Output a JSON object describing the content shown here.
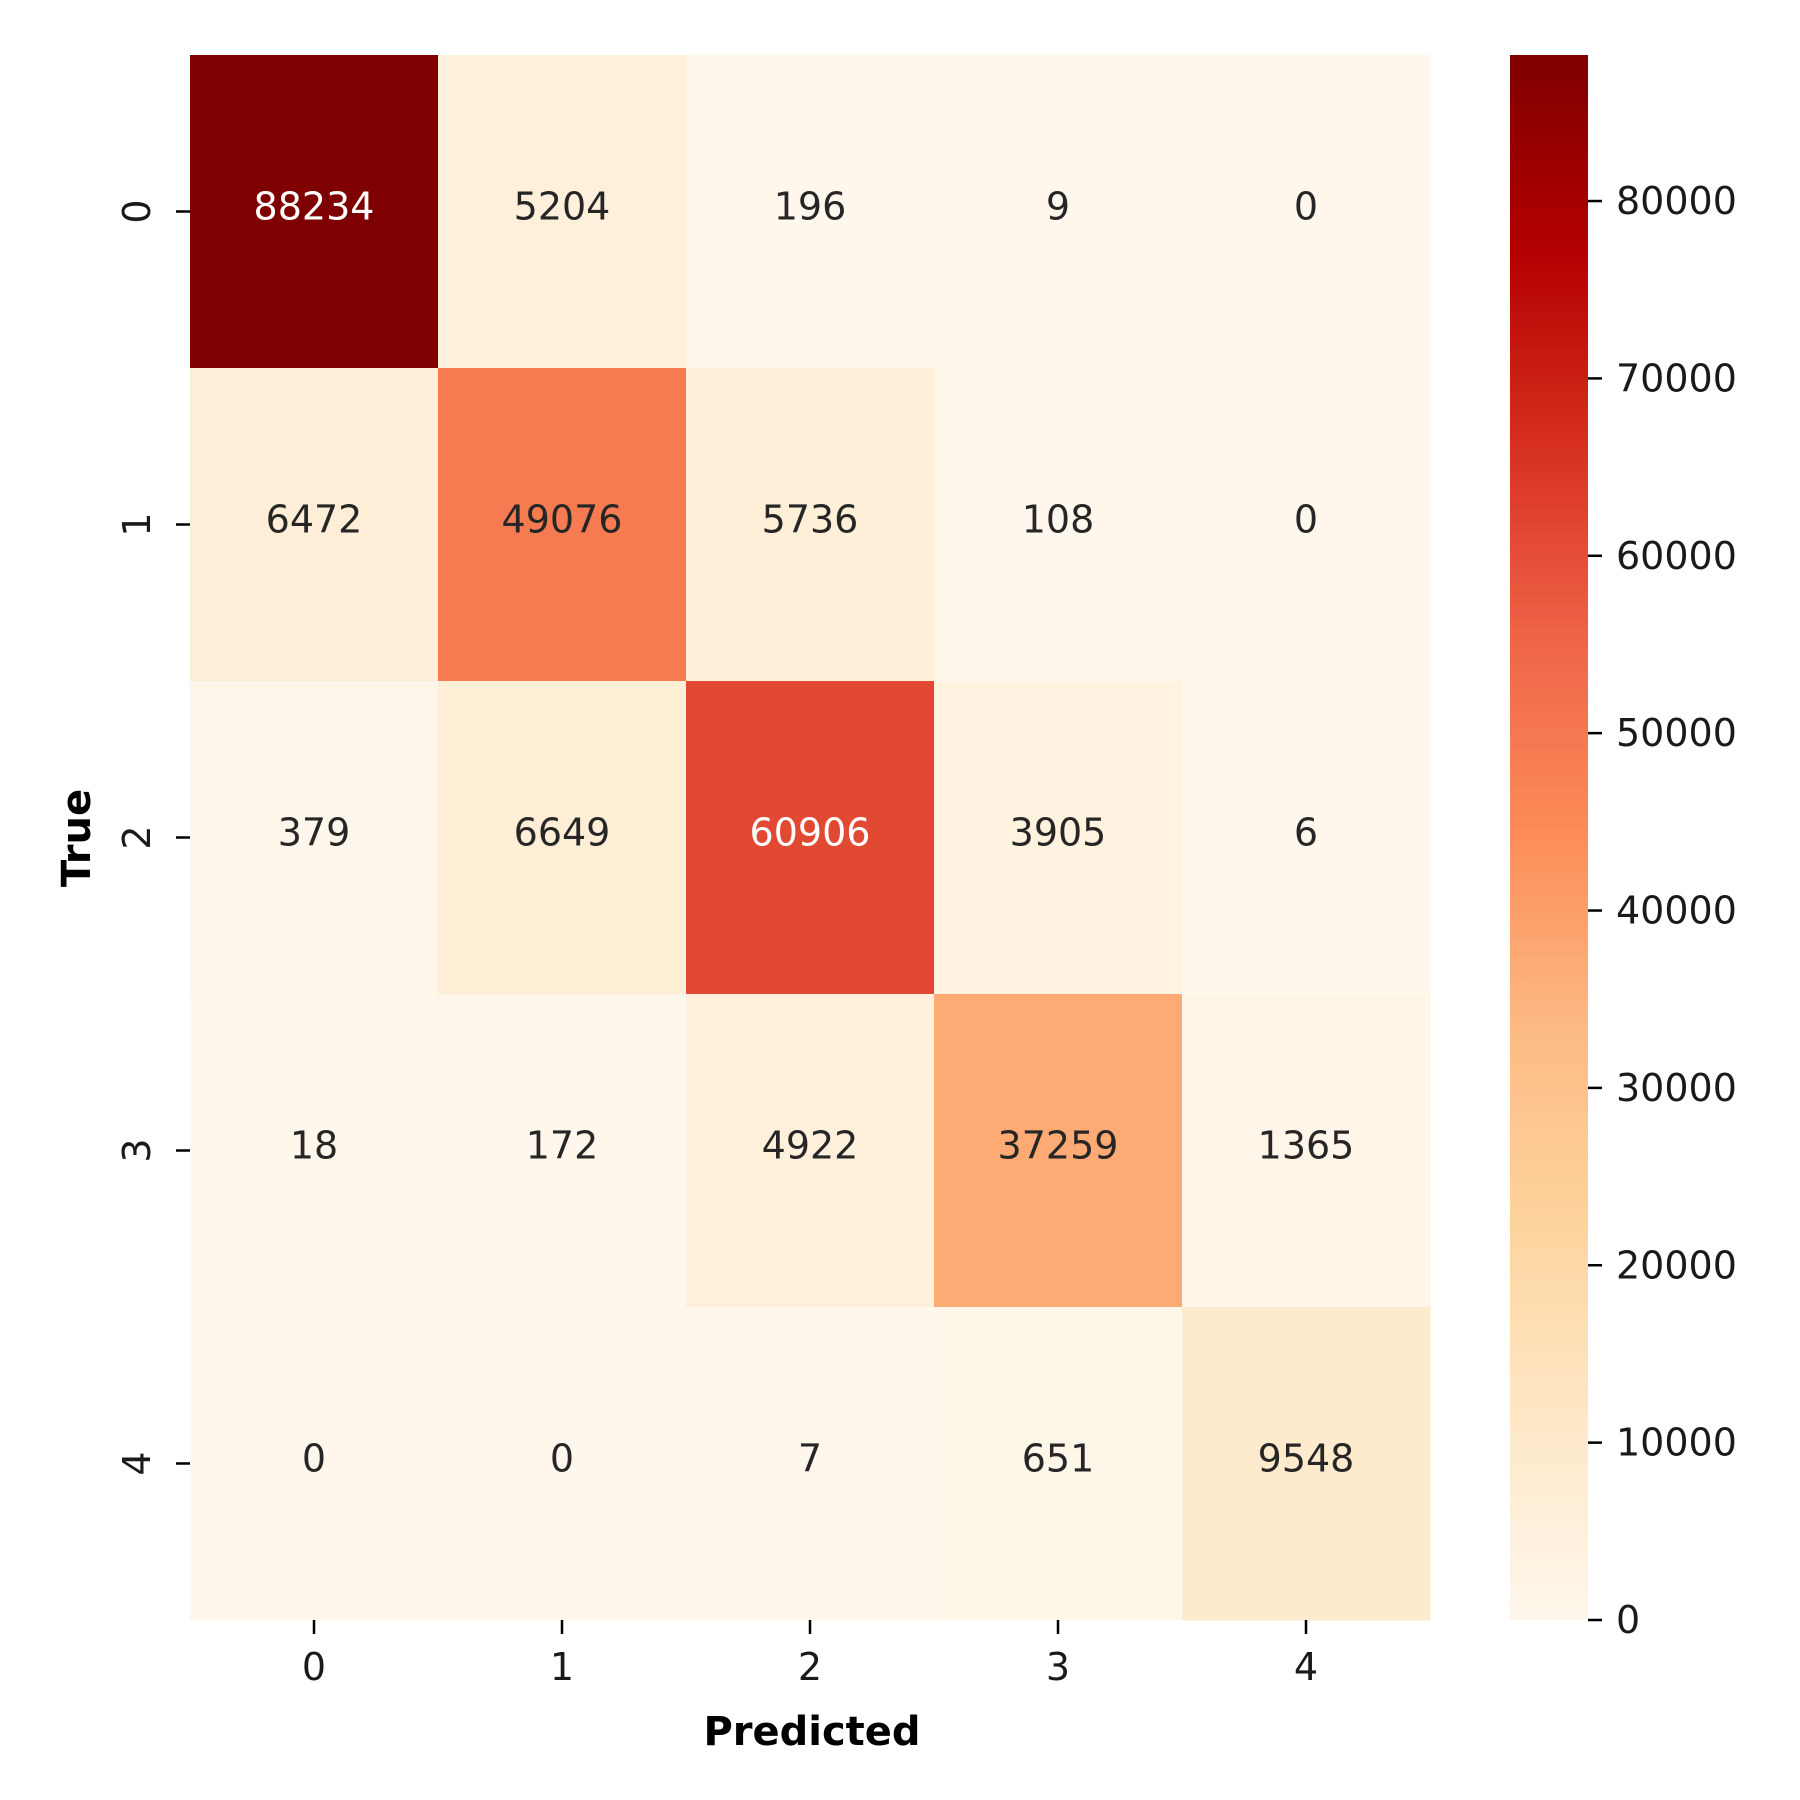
{
  "chart_data": {
    "type": "heatmap",
    "title": "",
    "xlabel": "Predicted",
    "ylabel": "True",
    "x_categories": [
      "0",
      "1",
      "2",
      "3",
      "4"
    ],
    "y_categories": [
      "0",
      "1",
      "2",
      "3",
      "4"
    ],
    "values": [
      [
        88234,
        5204,
        196,
        9,
        0
      ],
      [
        6472,
        49076,
        5736,
        108,
        0
      ],
      [
        379,
        6649,
        60906,
        3905,
        6
      ],
      [
        18,
        172,
        4922,
        37259,
        1365
      ],
      [
        0,
        0,
        7,
        651,
        9548
      ]
    ],
    "colorscale": "OrRd",
    "colorbar": {
      "range": [
        0,
        88234
      ],
      "ticks": [
        0,
        10000,
        20000,
        30000,
        40000,
        50000,
        60000,
        70000,
        80000
      ],
      "tick_labels": [
        "0",
        "10000",
        "20000",
        "30000",
        "40000",
        "50000",
        "60000",
        "70000",
        "80000"
      ]
    },
    "grid": false
  }
}
